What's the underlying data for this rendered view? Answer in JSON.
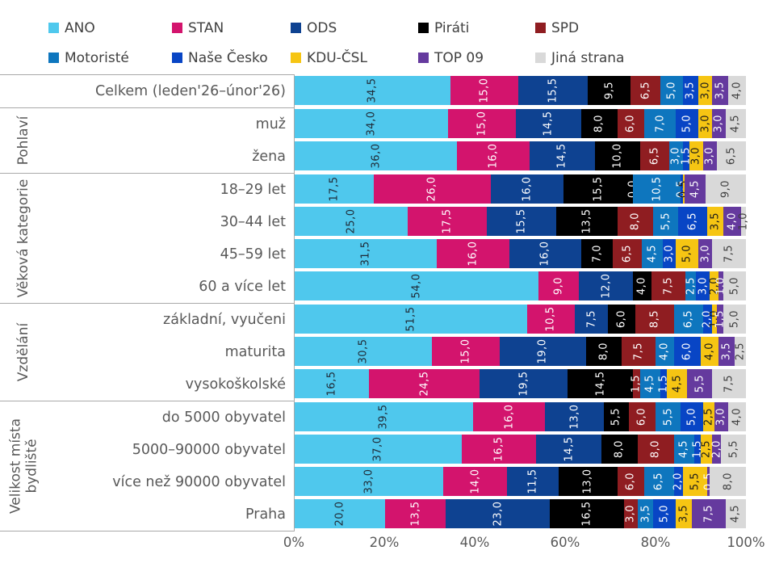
{
  "legend": {
    "row1": [
      "ANO",
      "STAN",
      "ODS",
      "Piráti",
      "SPD"
    ],
    "row2": [
      "Motoristé",
      "Naše Česko",
      "KDU-ČSL",
      "TOP 09",
      "Jiná strana"
    ]
  },
  "chart_data": {
    "type": "bar",
    "variant": "horizontal-stacked-100",
    "unit": "%",
    "decimal_separator": ",",
    "xlim": [
      0,
      100
    ],
    "x_ticks": [
      "0%",
      "20%",
      "40%",
      "60%",
      "80%",
      "100%"
    ],
    "series": [
      {
        "name": "ANO",
        "color": "#4fc8ed",
        "label_color": "#1f2a36"
      },
      {
        "name": "STAN",
        "color": "#d3146d",
        "label_color": "#ffffff"
      },
      {
        "name": "ODS",
        "color": "#0e4291",
        "label_color": "#ffffff"
      },
      {
        "name": "Piráti",
        "color": "#000000",
        "label_color": "#ffffff"
      },
      {
        "name": "SPD",
        "color": "#8f1d21",
        "label_color": "#ffffff"
      },
      {
        "name": "Motoristé",
        "color": "#0e76be",
        "label_color": "#ffffff"
      },
      {
        "name": "Naše Česko",
        "color": "#0845c5",
        "label_color": "#ffffff"
      },
      {
        "name": "KDU-ČSL",
        "color": "#f6c513",
        "label_color": "#1a1a1a"
      },
      {
        "name": "TOP 09",
        "color": "#653a9e",
        "label_color": "#ffffff"
      },
      {
        "name": "Jiná strana",
        "color": "#d9d9d9",
        "label_color": "#3f3f3f"
      }
    ],
    "groups": [
      {
        "label": "",
        "rows": [
          {
            "label": "Celkem (leden'26–únor'26)",
            "values": [
              34.5,
              15.0,
              15.5,
              9.5,
              6.5,
              5.0,
              3.5,
              3.0,
              3.5,
              4.0
            ]
          }
        ]
      },
      {
        "label": "Pohlaví",
        "rows": [
          {
            "label": "muž",
            "values": [
              34.0,
              15.0,
              14.5,
              8.0,
              6.0,
              7.0,
              5.0,
              3.0,
              3.0,
              4.5
            ]
          },
          {
            "label": "žena",
            "values": [
              36.0,
              16.0,
              14.5,
              10.0,
              6.5,
              3.0,
              1.5,
              3.0,
              3.0,
              6.5
            ]
          }
        ]
      },
      {
        "label": "Věková kategorie",
        "rows": [
          {
            "label": "18–29 let",
            "values": [
              17.5,
              26.0,
              16.0,
              15.5,
              0.0,
              10.5,
              0.5,
              0.5,
              4.5,
              9.0
            ]
          },
          {
            "label": "30–44 let",
            "values": [
              25.0,
              17.5,
              15.5,
              13.5,
              8.0,
              5.5,
              6.5,
              3.5,
              4.0,
              1.0
            ]
          },
          {
            "label": "45–59 let",
            "values": [
              31.5,
              16.0,
              16.0,
              7.0,
              6.5,
              4.5,
              3.0,
              5.0,
              3.0,
              7.5
            ]
          },
          {
            "label": "60 a více let",
            "values": [
              54.0,
              9.0,
              12.0,
              4.0,
              7.5,
              2.5,
              3.0,
              2.0,
              1.0,
              5.0
            ]
          }
        ]
      },
      {
        "label": "Vzdělání",
        "rows": [
          {
            "label": "základní, vyučeni",
            "values": [
              51.5,
              10.5,
              7.5,
              6.0,
              8.5,
              6.5,
              2.0,
              1.0,
              1.5,
              5.0
            ]
          },
          {
            "label": "maturita",
            "values": [
              30.5,
              15.0,
              19.0,
              8.0,
              7.5,
              4.0,
              6.0,
              4.0,
              3.5,
              2.5
            ]
          },
          {
            "label": "vysokoškolské",
            "values": [
              16.5,
              24.5,
              19.5,
              14.5,
              1.5,
              4.5,
              1.5,
              4.5,
              5.5,
              7.5
            ]
          }
        ]
      },
      {
        "label": "Velikost místa\nbydliště",
        "rows": [
          {
            "label": "do 5000 obyvatel",
            "values": [
              39.5,
              16.0,
              13.0,
              5.5,
              6.0,
              5.5,
              5.0,
              2.5,
              3.0,
              4.0
            ]
          },
          {
            "label": "5000–90000 obyvatel",
            "values": [
              37.0,
              16.5,
              14.5,
              8.0,
              8.0,
              4.5,
              1.5,
              2.5,
              2.0,
              5.5
            ]
          },
          {
            "label": "více než 90000 obyvatel",
            "values": [
              33.0,
              14.0,
              11.5,
              13.0,
              6.0,
              6.5,
              2.0,
              5.5,
              0.5,
              8.0
            ]
          },
          {
            "label": "Praha",
            "values": [
              20.0,
              13.5,
              23.0,
              16.5,
              3.0,
              3.5,
              5.0,
              3.5,
              7.5,
              4.5
            ]
          }
        ]
      }
    ]
  }
}
